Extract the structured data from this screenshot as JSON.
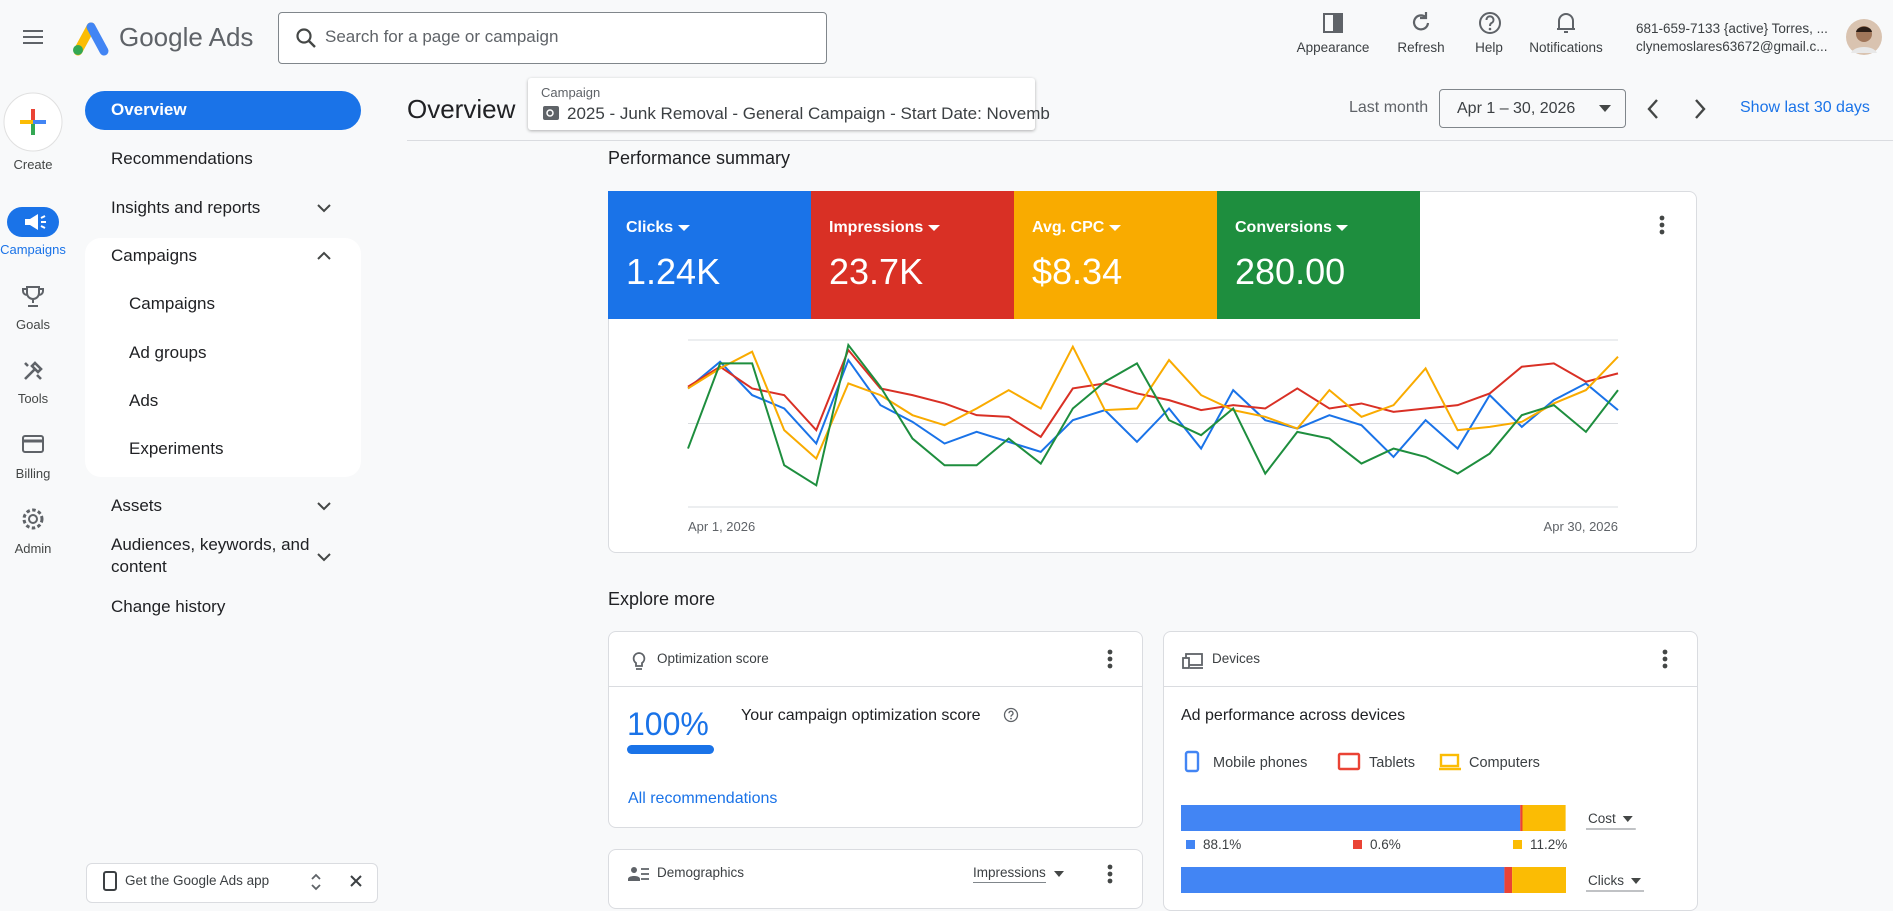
{
  "header": {
    "product": "Google Ads",
    "search_placeholder": "Search for a page or campaign",
    "actions": [
      "Appearance",
      "Refresh",
      "Help",
      "Notifications"
    ],
    "account_name": "681-659-7133 {active} Torres, ...",
    "account_email": "clynemoslares63672@gmail.c..."
  },
  "rail": [
    "Create",
    "Campaigns",
    "Goals",
    "Tools",
    "Billing",
    "Admin"
  ],
  "nav": {
    "items": [
      "Overview",
      "Recommendations",
      "Insights and reports",
      "Campaigns"
    ],
    "sub_items": [
      "Campaigns",
      "Ad groups",
      "Ads",
      "Experiments"
    ],
    "more_items": [
      "Assets",
      "Audiences, keywords, and content",
      "Change history"
    ]
  },
  "app_banner": "Get the Google Ads app",
  "page": {
    "title": "Overview",
    "campaign_label": "Campaign",
    "campaign_name": "2025 - Junk Removal - General Campaign - Start Date: Novemb",
    "range_label": "Last month",
    "range": "Apr 1 – 30, 2026",
    "show_last": "Show last 30 days"
  },
  "summary": {
    "title": "Performance summary",
    "values": [
      "1.24K",
      "23.7K",
      "$8.34",
      "280.00"
    ]
  },
  "explore": {
    "title": "Explore more",
    "optimization": {
      "title": "Optimization score",
      "score": "100%",
      "text": "Your campaign optimization score",
      "link": "All recommendations"
    },
    "devices": {
      "title": "Devices",
      "subtitle": "Ad performance across devices"
    },
    "demographics": {
      "title": "Demographics",
      "metric": "Impressions"
    }
  },
  "chart_data": [
    {
      "type": "line",
      "categories": [
        "Apr 1, 2026",
        null,
        null,
        null,
        null,
        null,
        null,
        null,
        null,
        null,
        null,
        null,
        null,
        null,
        null,
        null,
        null,
        null,
        null,
        null,
        null,
        null,
        null,
        null,
        null,
        null,
        null,
        null,
        null,
        "Apr 30, 2026"
      ],
      "ylim": [
        0,
        100
      ],
      "grid": true,
      "series": [
        {
          "name": "Clicks",
          "color": "#1a73e8",
          "values": [
            71,
            87,
            67,
            59,
            38,
            88,
            61,
            51,
            38,
            45,
            39,
            33,
            52,
            58,
            39,
            59,
            35,
            70,
            52,
            47,
            55,
            49,
            30,
            52,
            35,
            67,
            48,
            64,
            74,
            58
          ]
        },
        {
          "name": "Impressions",
          "color": "#d93025",
          "values": [
            72,
            84,
            71,
            67,
            46,
            94,
            71,
            67,
            62,
            55,
            54,
            42,
            71,
            74,
            68,
            64,
            58,
            61,
            59,
            71,
            59,
            62,
            57,
            59,
            61,
            68,
            84,
            86,
            75,
            80
          ]
        },
        {
          "name": "Avg. CPC",
          "color": "#f9ab00",
          "values": [
            71,
            83,
            93,
            46,
            29,
            74,
            67,
            55,
            49,
            59,
            70,
            59,
            96,
            58,
            59,
            88,
            67,
            58,
            54,
            47,
            70,
            54,
            61,
            83,
            46,
            48,
            51,
            62,
            70,
            90
          ]
        },
        {
          "name": "Conversions",
          "color": "#1e8e3e",
          "values": [
            35,
            86,
            86,
            25,
            13,
            97,
            72,
            41,
            25,
            25,
            41,
            26,
            59,
            75,
            86,
            52,
            43,
            59,
            20,
            45,
            41,
            26,
            35,
            30,
            20,
            32,
            55,
            61,
            45,
            70
          ]
        }
      ]
    },
    {
      "type": "stacked-bar",
      "categories": [
        "Cost",
        "Clicks"
      ],
      "xlim": [
        0,
        100
      ],
      "series": [
        {
          "name": "Mobile phones",
          "color": "#4285f4",
          "values": [
            88.1,
            84
          ],
          "value_labels": [
            "88.1%",
            null
          ]
        },
        {
          "name": "Tablets",
          "color": "#ea4335",
          "values": [
            0.6,
            2
          ],
          "value_labels": [
            "0.6%",
            null
          ]
        },
        {
          "name": "Computers",
          "color": "#fbbc04",
          "values": [
            11.2,
            14
          ],
          "value_labels": [
            "11.2%",
            null
          ]
        }
      ]
    }
  ]
}
